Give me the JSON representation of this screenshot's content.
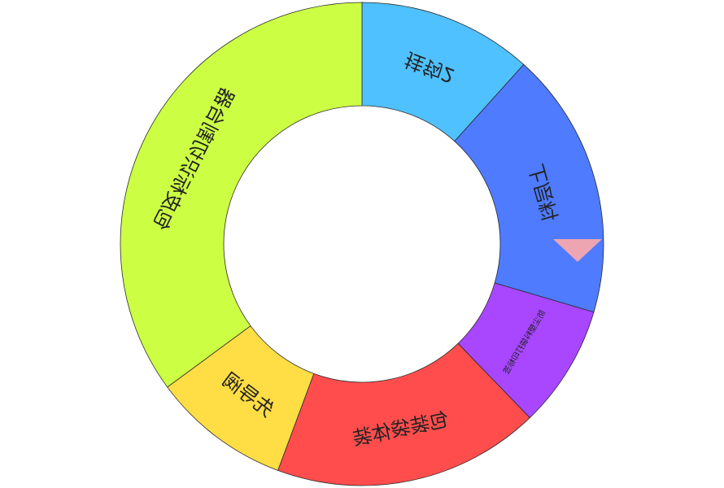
{
  "chart_data": {
    "type": "pie",
    "donut": true,
    "start_angle_deg": 90,
    "direction": "clockwise",
    "slices": [
      {
        "label": "挂钩2",
        "value": 11.67,
        "color": "#4FC1FF",
        "label_color": "#222222",
        "label_size": 24
      },
      {
        "label": "上层料",
        "value": 17.88,
        "color": "#4E7BFF",
        "label_color": "#FFFFFF",
        "label_size": 24
      },
      {
        "label": "防尘塑料袋打印标签",
        "value": 8.23,
        "color": "#A847FF",
        "label_color": "#222222",
        "label_size": 10
      },
      {
        "label": "包装袋体装",
        "value": 17.88,
        "color": "#FF4D4D",
        "label_color": "#222222",
        "label_size": 24
      },
      {
        "label": "先导阀",
        "value": 9.25,
        "color": "#FFDD44",
        "label_color": "#222222",
        "label_size": 24
      },
      {
        "label": "包皮标识切割台器",
        "value": 35.09,
        "color": "#CCFF44",
        "label_color": "#222222",
        "label_size": 24
      }
    ],
    "selected_pointer_color": "#FFAAAA"
  }
}
